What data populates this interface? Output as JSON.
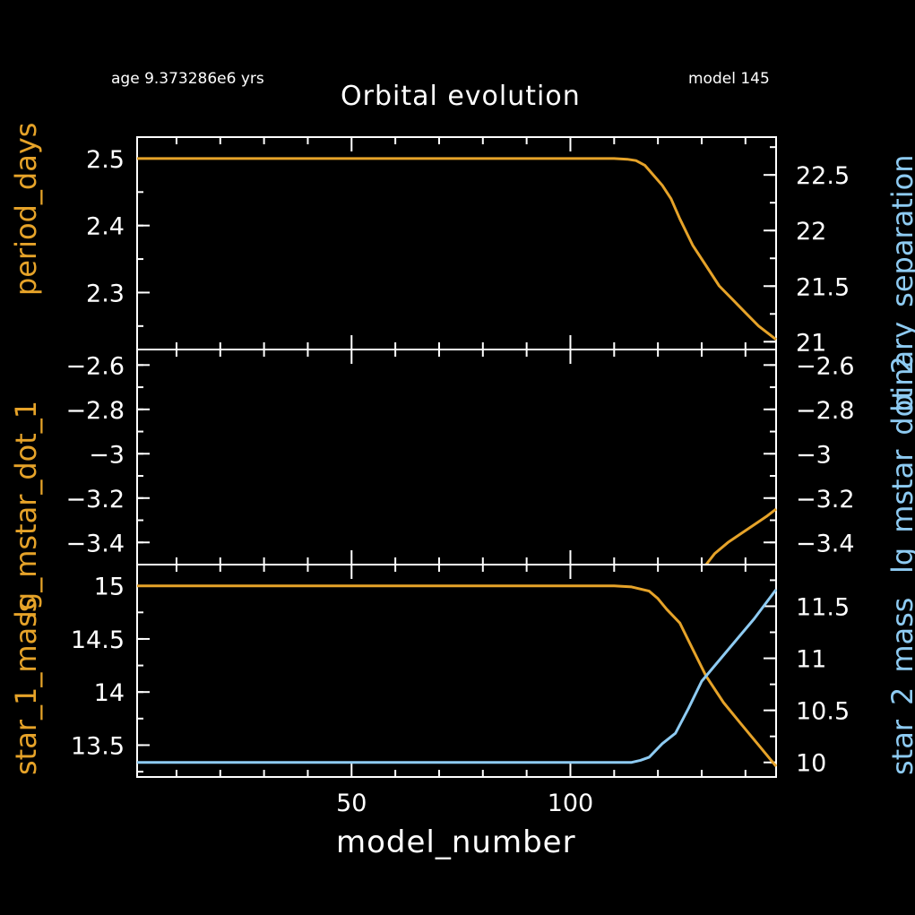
{
  "header": {
    "age_label": "age 9.373286e6 yrs",
    "model_label": "model 145",
    "title": "Orbital evolution"
  },
  "colors": {
    "orange": "#e6a329",
    "blue": "#8ecbf2",
    "axis": "#ffffff"
  },
  "chart_data": [
    {
      "type": "line",
      "panel": "top",
      "xlabel": "model_number",
      "left_ylabel": "period_days",
      "right_ylabel": "binary_separation",
      "xlim": [
        1,
        147
      ],
      "left_ylim": [
        2.215,
        2.532
      ],
      "right_ylim": [
        20.93,
        22.84
      ],
      "left_ticks": [
        "2.3",
        "2.4",
        "2.5"
      ],
      "right_ticks": [
        "21",
        "21.5",
        "22",
        "22.5"
      ],
      "series": [
        {
          "axis": "left",
          "color": "orange",
          "x": [
            1,
            100,
            110,
            113,
            115,
            117,
            119,
            121,
            123,
            125,
            128,
            131,
            134,
            137,
            140,
            143,
            147
          ],
          "y": [
            2.5,
            2.5,
            2.5,
            2.499,
            2.497,
            2.49,
            2.475,
            2.46,
            2.44,
            2.41,
            2.37,
            2.34,
            2.31,
            2.29,
            2.27,
            2.25,
            2.23
          ]
        }
      ]
    },
    {
      "type": "line",
      "panel": "middle",
      "left_ylabel": "lg_mstar_dot_1",
      "right_ylabel": "lg_mstar_dot_2",
      "xlim": [
        1,
        147
      ],
      "left_ylim": [
        -3.5,
        -2.53
      ],
      "right_ylim": [
        -3.5,
        -2.53
      ],
      "left_ticks": [
        "−2.6",
        "−2.8",
        "−3",
        "−3.2",
        "−3.4"
      ],
      "right_ticks": [
        "−2.6",
        "−2.8",
        "−3",
        "−3.2",
        "−3.4"
      ],
      "series": [
        {
          "axis": "left",
          "color": "orange",
          "x": [
            131,
            133,
            136,
            139,
            142,
            145,
            147
          ],
          "y": [
            -3.5,
            -3.45,
            -3.4,
            -3.36,
            -3.32,
            -3.28,
            -3.25
          ]
        }
      ]
    },
    {
      "type": "line",
      "panel": "bottom",
      "left_ylabel": "star_1_mass",
      "right_ylabel": "star_2_mass",
      "xlim": [
        1,
        147
      ],
      "left_ylim": [
        13.2,
        15.2
      ],
      "right_ylim": [
        9.86,
        11.9
      ],
      "left_ticks": [
        "13.5",
        "14",
        "14.5",
        "15"
      ],
      "right_ticks": [
        "10",
        "10.5",
        "11",
        "11.5"
      ],
      "series": [
        {
          "axis": "left",
          "color": "orange",
          "x": [
            1,
            110,
            114,
            118,
            120,
            122,
            125,
            128,
            131,
            135,
            139,
            143,
            147
          ],
          "y": [
            15,
            15,
            14.99,
            14.95,
            14.88,
            14.78,
            14.65,
            14.4,
            14.15,
            13.9,
            13.7,
            13.5,
            13.3
          ]
        },
        {
          "axis": "right",
          "color": "blue",
          "x": [
            1,
            114,
            116,
            118,
            121,
            124,
            127,
            130,
            134,
            138,
            142,
            147
          ],
          "y": [
            10,
            10,
            10.02,
            10.05,
            10.18,
            10.28,
            10.52,
            10.78,
            10.98,
            11.18,
            11.38,
            11.66
          ]
        }
      ]
    }
  ],
  "xticks": [
    "50",
    "100"
  ]
}
